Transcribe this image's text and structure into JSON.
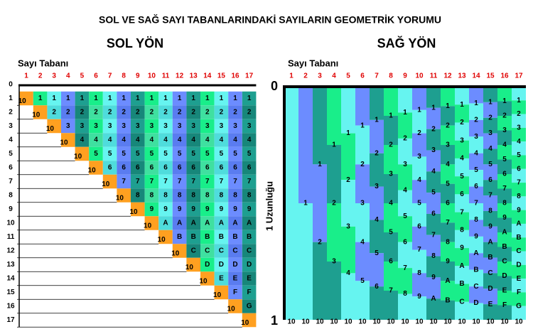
{
  "title": "SOL VE SAĞ SAYI TABANLARINDAKİ SAYILARIN GEOMETRİK YORUMU",
  "left": {
    "heading": "SOL YÖN",
    "axis_label": "Sayı Tabanı",
    "bases": [
      1,
      2,
      3,
      4,
      5,
      6,
      7,
      8,
      9,
      10,
      11,
      12,
      13,
      14,
      15,
      16,
      17
    ],
    "rows": [
      0,
      1,
      2,
      3,
      4,
      5,
      6,
      7,
      8,
      9,
      10,
      11,
      12,
      13,
      14,
      15,
      16,
      17
    ]
  },
  "right": {
    "heading": "SAĞ YÖN",
    "axis_label": "Sayı Tabanı",
    "length_label": "1 Uzunluğu",
    "bases": [
      1,
      2,
      3,
      4,
      5,
      6,
      7,
      8,
      9,
      10,
      11,
      12,
      13,
      14,
      15,
      16,
      17
    ],
    "top_mark": 0,
    "bottom_mark": 1
  },
  "digits": [
    "1",
    "2",
    "3",
    "4",
    "5",
    "6",
    "7",
    "8",
    "9",
    "A",
    "B",
    "C",
    "D",
    "E",
    "F",
    "G"
  ],
  "unit": "10"
}
